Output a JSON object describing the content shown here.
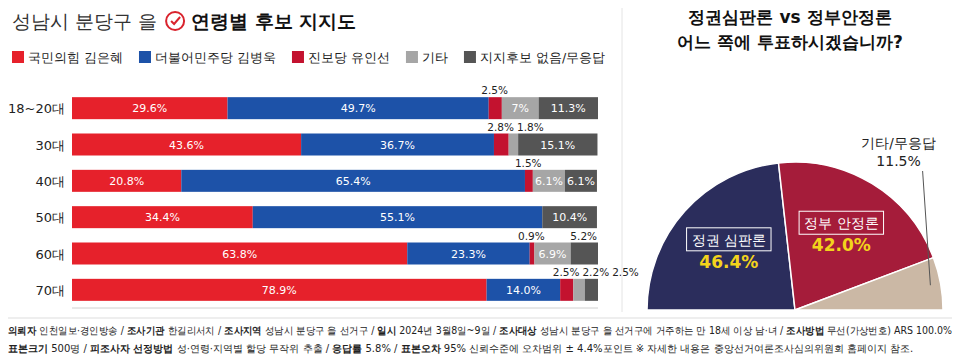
{
  "chart_data": [
    {
      "type": "bar",
      "orientation": "horizontal",
      "stacked": true,
      "data_labels": true,
      "tick_labels": "y",
      "title": "성남시 분당구 을",
      "subtitle": "연령별 후보 지지도",
      "legend": "top",
      "categories": [
        "18~20대",
        "30대",
        "40대",
        "50대",
        "60대",
        "70대"
      ],
      "xlim": [
        0,
        100.1
      ],
      "series": [
        {
          "name": "국민의힘 김은혜",
          "color": "#e6212b",
          "values": [
            29.6,
            43.6,
            20.8,
            34.4,
            63.8,
            78.9
          ],
          "value_labels": [
            "29.6%",
            "43.6%",
            "20.8%",
            "34.4%",
            "63.8%",
            "78.9%"
          ]
        },
        {
          "name": "더불어민주당 김병욱",
          "color": "#1d52a8",
          "values": [
            49.7,
            36.7,
            65.4,
            55.1,
            23.3,
            14.0
          ],
          "value_labels": [
            "49.7%",
            "36.7%",
            "65.4%",
            "55.1%",
            "23.3%",
            "14.0%"
          ]
        },
        {
          "name": "진보당 유인선",
          "color": "#c3122f",
          "values": [
            2.5,
            2.8,
            1.5,
            0,
            0.9,
            2.5
          ],
          "value_labels": [
            "2.5%",
            "2.8%",
            "1.5%",
            null,
            "0.9%",
            "2.5%"
          ]
        },
        {
          "name": "기타",
          "color": "#a6a6a6",
          "values": [
            7,
            1.8,
            6.1,
            0,
            6.9,
            2.2
          ],
          "value_labels": [
            "7%",
            "1.8%",
            "6.1%",
            null,
            "6.9%",
            "2.2%"
          ]
        },
        {
          "name": "지지후보 없음/무응답",
          "color": "#555555",
          "values": [
            11.3,
            15.1,
            6.1,
            10.4,
            5.2,
            2.5
          ],
          "value_labels": [
            "11.3%",
            "15.1%",
            "6.1%",
            "10.4%",
            "5.2%",
            "2.5%"
          ]
        }
      ]
    },
    {
      "type": "pie",
      "data_labels": true,
      "title": "정권심판론 vs 정부안정론",
      "subtitle": "어느 쪽에 투표하시겠습니까?",
      "categories": [
        "정권 심판론",
        "정부 안정론",
        "기타/무응답"
      ],
      "values": [
        46.4,
        42.0,
        11.5
      ],
      "value_labels": [
        "46.4%",
        "42.0%",
        "11.5%"
      ],
      "colors": [
        "#2b2d5c",
        "#a51c3a",
        "#cbb8a5"
      ]
    }
  ],
  "footer": {
    "separator": "/",
    "lines": [
      [
        {
          "key": "의뢰자",
          "value": "인천일보·경인방송"
        },
        {
          "key": "조사기관",
          "value": "한길리서치"
        },
        {
          "key": "조사지역",
          "value": "성남시 분당구 을 선거구"
        },
        {
          "key": "일시",
          "value": "2024년 3월8일~9일"
        },
        {
          "key": "조사대상",
          "value": "성남시 분당구 을 선거구에 거주하는 만 18세 이상 남·녀"
        },
        {
          "key": "조사방법",
          "value": "무선(가상번호) ARS 100.0%"
        }
      ],
      [
        {
          "key": "표본크기",
          "value": "500명"
        },
        {
          "key": "피조사자 선정방법",
          "value": "성·연령·지역별 할당 무작위 추출"
        },
        {
          "key": "응답률",
          "value": "5.8%"
        },
        {
          "key": "표본오차",
          "value": "95% 신뢰수준에 오차범위 ± 4.4%포인트 ※ 자세한 내용은 중앙선거여론조사심의위원회 홈페이지 참조."
        }
      ]
    ]
  }
}
